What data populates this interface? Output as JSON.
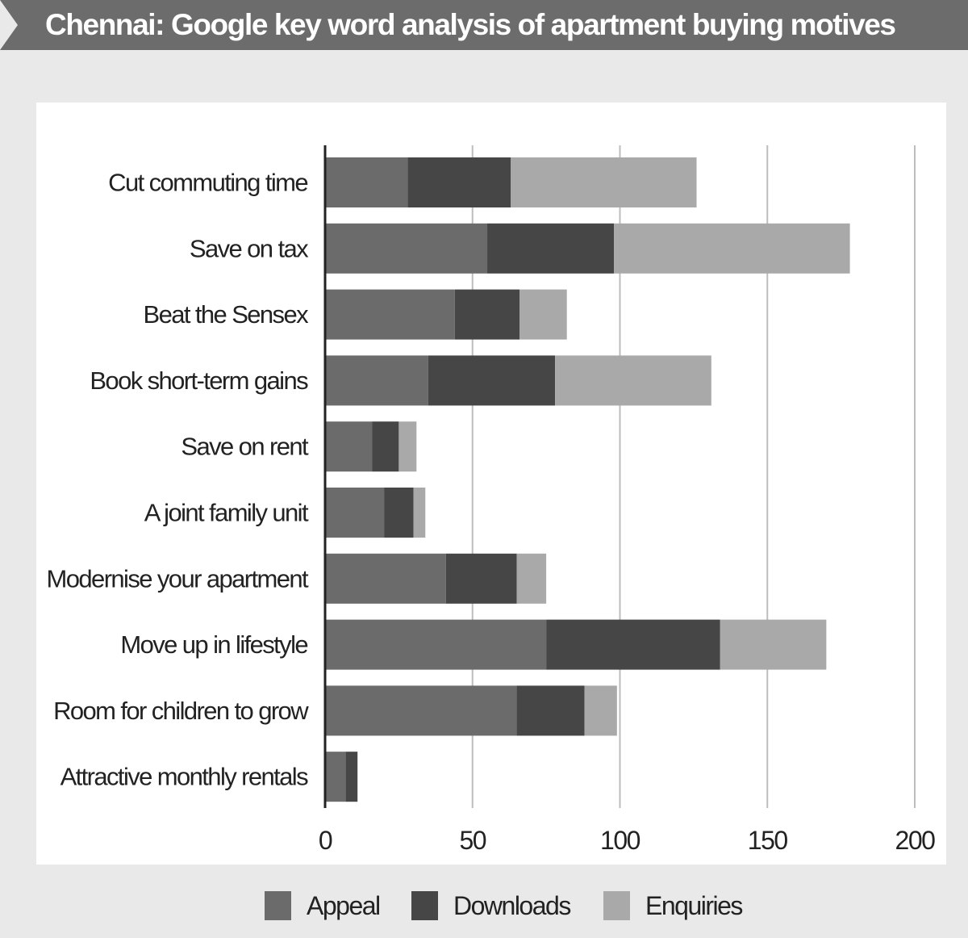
{
  "title": "Chennai: Google key word analysis of apartment buying motives",
  "colors": {
    "banner": "#6c6c6c",
    "background": "#e9e9e9",
    "panel": "#ffffff",
    "appeal": "#6b6b6b",
    "downloads": "#464646",
    "enquiries": "#a9a9a9",
    "gridline": "#bdbdbd",
    "axis": "#222222",
    "text": "#222222"
  },
  "legend": [
    {
      "label": "Appeal",
      "color": "#6b6b6b"
    },
    {
      "label": "Downloads",
      "color": "#464646"
    },
    {
      "label": "Enquiries",
      "color": "#a9a9a9"
    }
  ],
  "chart_data": {
    "type": "bar",
    "orientation": "horizontal",
    "stacked": true,
    "title": "Chennai: Google key word analysis of apartment buying motives",
    "xlabel": "",
    "ylabel": "",
    "xlim": [
      0,
      200
    ],
    "xticks": [
      0,
      50,
      100,
      150,
      200
    ],
    "grid": "vertical",
    "legend_position": "bottom",
    "categories": [
      "Cut commuting time",
      "Save on tax",
      "Beat the Sensex",
      "Book short-term gains",
      "Save on rent",
      "A joint family unit",
      "Modernise your apartment",
      "Move up in lifestyle",
      "Room for children to grow",
      "Attractive monthly rentals"
    ],
    "series": [
      {
        "name": "Appeal",
        "values": [
          28,
          55,
          44,
          35,
          16,
          20,
          41,
          75,
          65,
          7
        ]
      },
      {
        "name": "Downloads",
        "values": [
          35,
          43,
          22,
          43,
          9,
          10,
          24,
          59,
          23,
          4
        ]
      },
      {
        "name": "Enquiries",
        "values": [
          63,
          80,
          16,
          53,
          6,
          4,
          10,
          36,
          11,
          0
        ]
      }
    ]
  }
}
